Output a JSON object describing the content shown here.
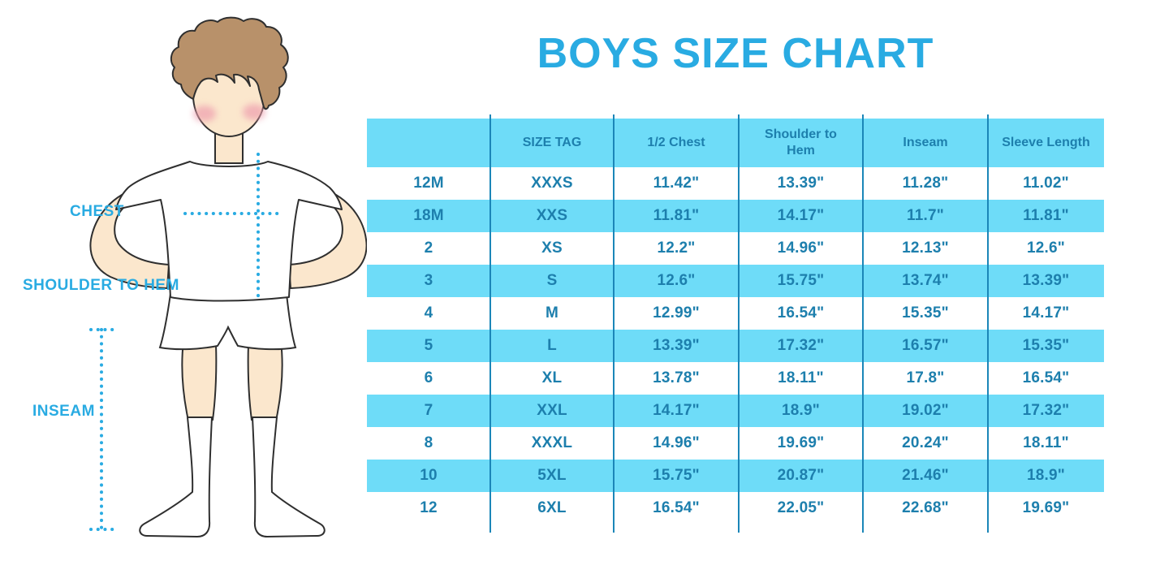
{
  "chart_data": {
    "type": "table",
    "title": "BOYS SIZE CHART",
    "columns": [
      "",
      "SIZE TAG",
      "1/2 Chest",
      "Shoulder to Hem",
      "Inseam",
      "Sleeve Length"
    ],
    "rows": [
      [
        "12M",
        "XXXS",
        "11.42\"",
        "13.39\"",
        "11.28\"",
        "11.02\""
      ],
      [
        "18M",
        "XXS",
        "11.81\"",
        "14.17\"",
        "11.7\"",
        "11.81\""
      ],
      [
        "2",
        "XS",
        "12.2\"",
        "14.96\"",
        "12.13\"",
        "12.6\""
      ],
      [
        "3",
        "S",
        "12.6\"",
        "15.75\"",
        "13.74\"",
        "13.39\""
      ],
      [
        "4",
        "M",
        "12.99\"",
        "16.54\"",
        "15.35\"",
        "14.17\""
      ],
      [
        "5",
        "L",
        "13.39\"",
        "17.32\"",
        "16.57\"",
        "15.35\""
      ],
      [
        "6",
        "XL",
        "13.78\"",
        "18.11\"",
        "17.8\"",
        "16.54\""
      ],
      [
        "7",
        "XXL",
        "14.17\"",
        "18.9\"",
        "19.02\"",
        "17.32\""
      ],
      [
        "8",
        "XXXL",
        "14.96\"",
        "19.69\"",
        "20.24\"",
        "18.11\""
      ],
      [
        "10",
        "5XL",
        "15.75\"",
        "20.87\"",
        "21.46\"",
        "18.9\""
      ],
      [
        "12",
        "6XL",
        "16.54\"",
        "22.05\"",
        "22.68\"",
        "19.69\""
      ]
    ],
    "units": "inches",
    "row_striping": "alternating white / light blue, header light blue"
  },
  "figure": {
    "labels": {
      "chest": "CHEST",
      "shoulder_to_hem": "SHOULDER TO HEM",
      "inseam": "INSEAM"
    }
  },
  "colors": {
    "accent_blue": "#29abe2",
    "row_blue": "#6edcf8",
    "table_text": "#1d7fad",
    "divider": "#1b86b8",
    "skin": "#fbe7cd",
    "hair": "#b8916a",
    "cheek": "#ee9fae",
    "outline": "#2f2f2f"
  }
}
